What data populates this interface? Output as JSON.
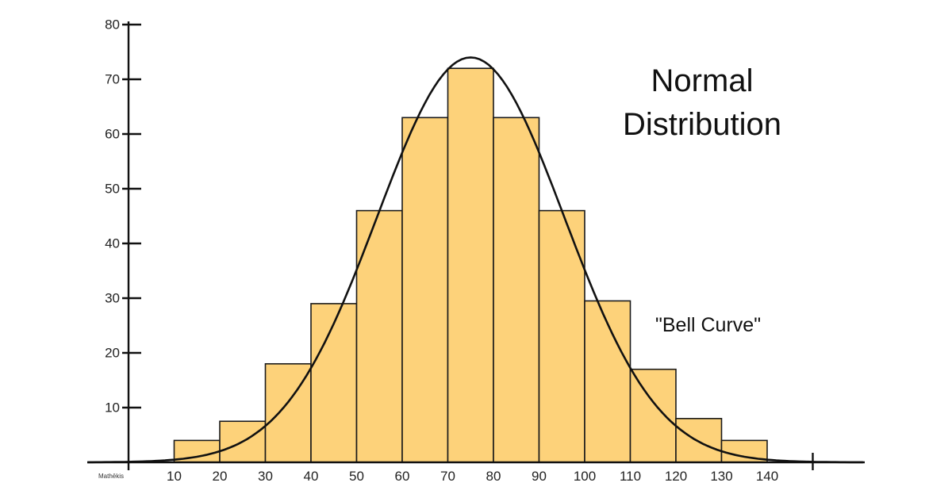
{
  "chart_data": {
    "type": "bar",
    "title_lines": [
      "Normal",
      "Distribution"
    ],
    "annotation": "\"Bell Curve\"",
    "x_axis_first_label": "Mathēkis",
    "x_ticks": [
      "10",
      "20",
      "30",
      "40",
      "50",
      "60",
      "70",
      "80",
      "90",
      "100",
      "110",
      "120",
      "130",
      "140"
    ],
    "y_ticks": [
      "10",
      "20",
      "30",
      "40",
      "50",
      "60",
      "70",
      "80"
    ],
    "ylim": [
      0,
      80
    ],
    "xlim": [
      0,
      150
    ],
    "bins": [
      {
        "x0": 10,
        "x1": 20,
        "value": 4
      },
      {
        "x0": 20,
        "x1": 30,
        "value": 7.5
      },
      {
        "x0": 30,
        "x1": 40,
        "value": 18
      },
      {
        "x0": 40,
        "x1": 50,
        "value": 29
      },
      {
        "x0": 50,
        "x1": 60,
        "value": 46
      },
      {
        "x0": 60,
        "x1": 70,
        "value": 63
      },
      {
        "x0": 70,
        "x1": 80,
        "value": 72
      },
      {
        "x0": 80,
        "x1": 90,
        "value": 63
      },
      {
        "x0": 90,
        "x1": 100,
        "value": 46
      },
      {
        "x0": 100,
        "x1": 110,
        "value": 29.5
      },
      {
        "x0": 110,
        "x1": 120,
        "value": 17
      },
      {
        "x0": 120,
        "x1": 130,
        "value": 8
      },
      {
        "x0": 130,
        "x1": 140,
        "value": 4
      }
    ],
    "curve": {
      "mean": 75,
      "peak": 74,
      "sd": 20.5
    },
    "colors": {
      "bar_fill": "#fdd27a",
      "bar_stroke": "#1a1a1a",
      "curve": "#111111"
    },
    "grid": false,
    "legend": "none"
  }
}
